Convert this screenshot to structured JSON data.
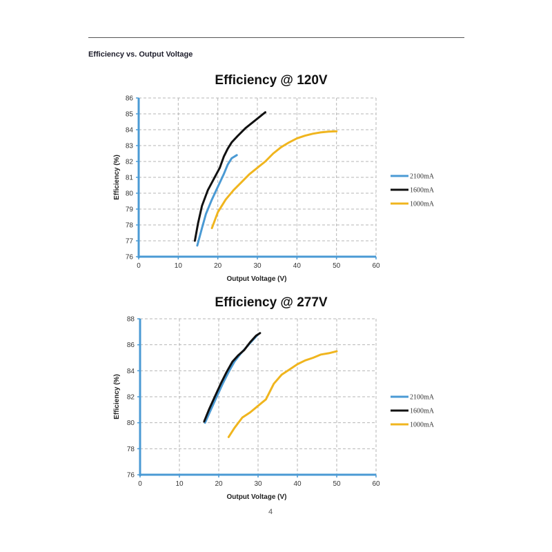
{
  "page": {
    "section_heading": "Efficiency vs. Output Voltage",
    "page_number": "4"
  },
  "colors": {
    "2100mA": "#4a9ad4",
    "1600mA": "#111111",
    "1000mA": "#f0b51e",
    "axis": "#4a9ad4",
    "grid": "#b5b5b5"
  },
  "chart_data": [
    {
      "type": "line",
      "title": "Efficiency @ 120V",
      "xlabel": "Output Voltage (V)",
      "ylabel": "Efficiency (%)",
      "xlim": [
        0,
        60
      ],
      "ylim": [
        76,
        86
      ],
      "xticks": [
        0,
        10,
        20,
        30,
        40,
        50,
        60
      ],
      "yticks": [
        76,
        77,
        78,
        79,
        80,
        81,
        82,
        83,
        84,
        85,
        86
      ],
      "grid": true,
      "legend_position": "right",
      "series": [
        {
          "name": "2100mA",
          "color": "#4a9ad4",
          "x": [
            14.8,
            16,
            17,
            18.5,
            20,
            21.5,
            22.5,
            23.5,
            24.8
          ],
          "y": [
            76.7,
            77.8,
            78.7,
            79.6,
            80.4,
            81.2,
            81.8,
            82.2,
            82.4
          ]
        },
        {
          "name": "1600mA",
          "color": "#111111",
          "x": [
            14.2,
            15,
            16,
            17.5,
            19,
            20.5,
            21.5,
            22.5,
            23.5,
            25,
            27,
            28.5,
            30,
            32
          ],
          "y": [
            77.0,
            78.1,
            79.2,
            80.2,
            80.9,
            81.6,
            82.3,
            82.8,
            83.2,
            83.6,
            84.1,
            84.4,
            84.7,
            85.1
          ]
        },
        {
          "name": "1000mA",
          "color": "#f0b51e",
          "x": [
            18.5,
            20,
            22,
            24,
            26,
            28,
            30,
            32,
            34,
            36,
            38,
            40,
            42,
            44,
            46,
            48,
            50
          ],
          "y": [
            77.8,
            78.8,
            79.6,
            80.2,
            80.7,
            81.2,
            81.6,
            82.0,
            82.5,
            82.9,
            83.2,
            83.45,
            83.62,
            83.75,
            83.83,
            83.88,
            83.9
          ]
        }
      ]
    },
    {
      "type": "line",
      "title": "Efficiency @ 277V",
      "xlabel": "Output Voltage (V)",
      "ylabel": "Efficiency (%)",
      "xlim": [
        0,
        60
      ],
      "ylim": [
        76,
        88
      ],
      "xticks": [
        0,
        10,
        20,
        30,
        40,
        50,
        60
      ],
      "yticks": [
        76,
        78,
        80,
        82,
        84,
        86,
        88
      ],
      "grid": true,
      "legend_position": "right",
      "series": [
        {
          "name": "2100mA",
          "color": "#4a9ad4",
          "x": [
            16.5,
            18,
            19.5,
            21,
            22.5,
            24,
            25.5,
            27,
            28.5,
            30
          ],
          "y": [
            80.0,
            81.0,
            82.0,
            83.0,
            83.9,
            84.7,
            85.3,
            85.8,
            86.3,
            86.8
          ]
        },
        {
          "name": "1600mA",
          "color": "#111111",
          "x": [
            16.3,
            17.5,
            19,
            20.5,
            22,
            23.5,
            25,
            26.5,
            28,
            29.5,
            30.5
          ],
          "y": [
            80.1,
            81.0,
            82.0,
            83.0,
            83.9,
            84.7,
            85.2,
            85.6,
            86.2,
            86.7,
            86.9
          ]
        },
        {
          "name": "1000mA",
          "color": "#f0b51e",
          "x": [
            22.5,
            24,
            26,
            28,
            30,
            32,
            34,
            36,
            38,
            40,
            42,
            44,
            46,
            48,
            50
          ],
          "y": [
            78.9,
            79.6,
            80.4,
            80.8,
            81.3,
            81.8,
            83.0,
            83.7,
            84.1,
            84.5,
            84.8,
            85.0,
            85.25,
            85.35,
            85.5
          ]
        }
      ]
    }
  ]
}
